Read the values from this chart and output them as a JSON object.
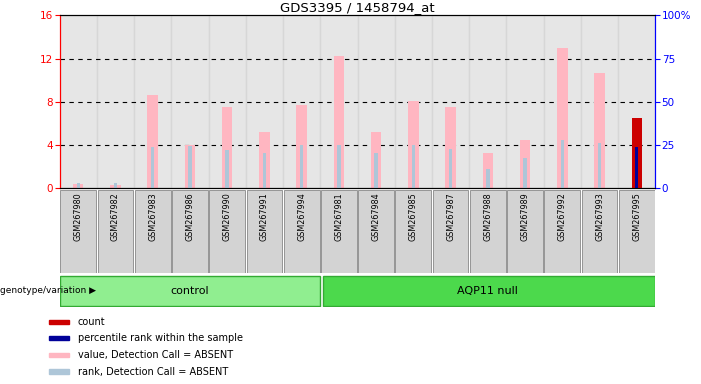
{
  "title": "GDS3395 / 1458794_at",
  "samples": [
    "GSM267980",
    "GSM267982",
    "GSM267983",
    "GSM267986",
    "GSM267990",
    "GSM267991",
    "GSM267994",
    "GSM267981",
    "GSM267984",
    "GSM267985",
    "GSM267987",
    "GSM267988",
    "GSM267989",
    "GSM267992",
    "GSM267993",
    "GSM267995"
  ],
  "groups": [
    "control",
    "control",
    "control",
    "control",
    "control",
    "control",
    "control",
    "AQP11 null",
    "AQP11 null",
    "AQP11 null",
    "AQP11 null",
    "AQP11 null",
    "AQP11 null",
    "AQP11 null",
    "AQP11 null",
    "AQP11 null"
  ],
  "ctrl_count": 7,
  "aqp_count": 9,
  "pink_values": [
    0.4,
    0.3,
    8.6,
    4.0,
    7.5,
    5.2,
    7.7,
    12.2,
    5.2,
    8.1,
    7.5,
    3.3,
    4.5,
    13.0,
    10.7,
    0.0
  ],
  "light_blue_values": [
    0.5,
    0.5,
    3.8,
    3.9,
    3.5,
    3.3,
    4.0,
    4.0,
    3.3,
    4.0,
    3.6,
    1.8,
    2.8,
    4.5,
    4.2,
    3.8
  ],
  "red_values": [
    0.0,
    0.0,
    0.0,
    0.0,
    0.0,
    0.0,
    0.0,
    0.0,
    0.0,
    0.0,
    0.0,
    0.0,
    0.0,
    0.0,
    0.0,
    6.5
  ],
  "blue_values": [
    0.0,
    0.0,
    0.0,
    0.0,
    0.0,
    0.0,
    0.0,
    0.0,
    0.0,
    0.0,
    0.0,
    0.0,
    0.0,
    0.0,
    0.0,
    3.8
  ],
  "ylim_left": [
    0,
    16
  ],
  "ylim_right": [
    0,
    100
  ],
  "yticks_left": [
    0,
    4,
    8,
    12,
    16
  ],
  "yticks_right": [
    0,
    25,
    50,
    75,
    100
  ],
  "bar_bg_color": "#d3d3d3",
  "pink_color": "#FFB6C1",
  "light_blue_color": "#aec6d8",
  "red_color": "#cc0000",
  "blue_color": "#000099",
  "ctrl_fill": "#90EE90",
  "aqp_fill": "#4cd94c",
  "legend_items": [
    {
      "color": "#cc0000",
      "label": "count"
    },
    {
      "color": "#000099",
      "label": "percentile rank within the sample"
    },
    {
      "color": "#FFB6C1",
      "label": "value, Detection Call = ABSENT"
    },
    {
      "color": "#aec6d8",
      "label": "rank, Detection Call = ABSENT"
    }
  ]
}
